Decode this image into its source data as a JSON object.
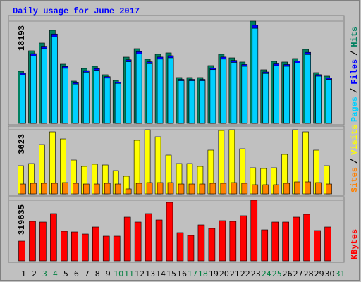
{
  "title": "Daily usage for June 2017",
  "chart_data": [
    {
      "type": "bar",
      "legend_separator": "/",
      "ylim": [
        0,
        18193
      ],
      "yticks": [
        18193
      ],
      "series": [
        {
          "name": "Hits",
          "color": "#008060",
          "values": [
            9285,
            12925,
            14305,
            16565,
            10540,
            7530,
            9790,
            10165,
            8660,
            7655,
            11795,
            13300,
            11420,
            12300,
            12550,
            8160,
            8160,
            8160,
            10290,
            12300,
            11670,
            10920,
            18193,
            9540,
            11045,
            10920,
            11545,
            13175,
            9035,
            8410,
            null
          ]
        },
        {
          "name": "Files",
          "color": "#0000ff",
          "values": [
            8914,
            12408,
            13733,
            15902,
            10118,
            7229,
            9398,
            9758,
            8314,
            7349,
            11323,
            12768,
            10963,
            11808,
            12048,
            7834,
            7834,
            7834,
            9878,
            11808,
            11203,
            10483,
            17465,
            9158,
            10603,
            10483,
            11083,
            12648,
            8674,
            8074,
            null
          ]
        },
        {
          "name": "Pages",
          "color": "#00d0ff",
          "values": [
            8635,
            12020,
            13304,
            15405,
            9802,
            7003,
            9105,
            9453,
            8054,
            7119,
            10969,
            12369,
            10621,
            11439,
            11672,
            7589,
            7589,
            7589,
            9570,
            11439,
            10853,
            10156,
            16919,
            8872,
            10272,
            10156,
            10737,
            12253,
            8403,
            7821,
            null
          ]
        }
      ]
    },
    {
      "type": "bar",
      "legend_separator": "/",
      "ylim": [
        0,
        3623
      ],
      "yticks": [
        3623
      ],
      "series": [
        {
          "name": "Visits",
          "color": "#ffff00",
          "values": [
            1592,
            1711,
            2786,
            3503,
            3104,
            1910,
            1552,
            1672,
            1632,
            1313,
            995,
            3025,
            3623,
            3224,
            2189,
            1711,
            1711,
            1552,
            2468,
            3582,
            3623,
            2547,
            1473,
            1433,
            1473,
            2229,
            3623,
            3503,
            2468,
            1592,
            null
          ]
        },
        {
          "name": "Sites",
          "color": "#ff8000",
          "values": [
            557,
            597,
            597,
            597,
            637,
            597,
            557,
            557,
            597,
            557,
            280,
            597,
            637,
            637,
            637,
            557,
            557,
            557,
            597,
            597,
            637,
            597,
            517,
            517,
            517,
            597,
            677,
            677,
            637,
            557,
            null
          ]
        }
      ]
    },
    {
      "type": "bar",
      "ylim": [
        0,
        319635
      ],
      "yticks": [
        319635
      ],
      "categories": [
        "1",
        "2",
        "3",
        "4",
        "5",
        "6",
        "7",
        "8",
        "9",
        "10",
        "11",
        "12",
        "13",
        "14",
        "15",
        "16",
        "17",
        "18",
        "19",
        "20",
        "21",
        "22",
        "23",
        "24",
        "25",
        "26",
        "27",
        "28",
        "29",
        "30",
        "31"
      ],
      "label_colors": [
        "#000000",
        "#000000",
        "#008040",
        "#008040",
        "#000000",
        "#000000",
        "#000000",
        "#000000",
        "#000000",
        "#008040",
        "#008040",
        "#000000",
        "#000000",
        "#000000",
        "#000000",
        "#000000",
        "#008040",
        "#008040",
        "#000000",
        "#000000",
        "#000000",
        "#000000",
        "#000000",
        "#008040",
        "#008040",
        "#000000",
        "#000000",
        "#000000",
        "#000000",
        "#000000",
        "#008040"
      ],
      "series": [
        {
          "name": "KBytes",
          "color": "#ff0000",
          "values": [
            104076,
            208152,
            204435,
            249039,
            156114,
            152397,
            141246,
            178416,
            130095,
            130095,
            230454,
            204435,
            249039,
            215586,
            308511,
            148680,
            133812,
            189567,
            170982,
            211869,
            208152,
            237888,
            319635,
            163548,
            204435,
            204435,
            230454,
            245322,
            159831,
            178416,
            null
          ]
        }
      ]
    }
  ]
}
